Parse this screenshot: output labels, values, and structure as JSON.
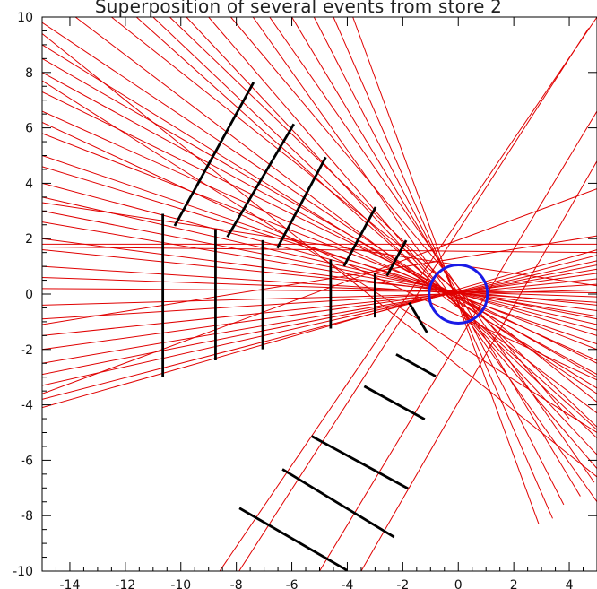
{
  "chart_data": {
    "type": "line",
    "title": "Superposition of several events from store 2",
    "xlabel": "",
    "ylabel": "",
    "xlim": [
      -15,
      5
    ],
    "ylim": [
      -10,
      10
    ],
    "grid": false,
    "x_ticks": [
      -14,
      -12,
      -10,
      -8,
      -6,
      -4,
      -2,
      0,
      2,
      4
    ],
    "y_ticks": [
      -10,
      -8,
      -6,
      -4,
      -2,
      0,
      2,
      4,
      6,
      8,
      10
    ],
    "colors": {
      "track": "#e00000",
      "detector": "#000000",
      "target_circle": "#1a1ae6",
      "frame": "#000000"
    },
    "target_circle": {
      "center": [
        0.0,
        0.0
      ],
      "radius": 1.05
    },
    "detector_segments": [
      [
        [
          -10.65,
          -2.95
        ],
        [
          -10.65,
          2.85
        ]
      ],
      [
        [
          -8.75,
          -2.35
        ],
        [
          -8.75,
          2.3
        ]
      ],
      [
        [
          -7.05,
          -1.95
        ],
        [
          -7.05,
          1.9
        ]
      ],
      [
        [
          -4.6,
          -1.2
        ],
        [
          -4.6,
          1.2
        ]
      ],
      [
        [
          -3.0,
          -0.8
        ],
        [
          -3.0,
          0.7
        ]
      ],
      [
        [
          -10.2,
          2.5
        ],
        [
          -7.4,
          7.6
        ]
      ],
      [
        [
          -8.3,
          2.1
        ],
        [
          -5.95,
          6.1
        ]
      ],
      [
        [
          -6.5,
          1.7
        ],
        [
          -4.8,
          4.9
        ]
      ],
      [
        [
          -4.1,
          1.05
        ],
        [
          -3.0,
          3.1
        ]
      ],
      [
        [
          -2.55,
          0.7
        ],
        [
          -1.9,
          1.9
        ]
      ],
      [
        [
          -1.75,
          -0.35
        ],
        [
          -1.15,
          -1.35
        ]
      ],
      [
        [
          -2.2,
          -2.2
        ],
        [
          -0.85,
          -2.95
        ]
      ],
      [
        [
          -3.35,
          -3.35
        ],
        [
          -1.25,
          -4.5
        ]
      ],
      [
        [
          -5.25,
          -5.15
        ],
        [
          -1.85,
          -7.0
        ]
      ],
      [
        [
          -6.3,
          -6.35
        ],
        [
          -2.35,
          -8.75
        ]
      ],
      [
        [
          -7.85,
          -7.75
        ],
        [
          -4.05,
          -9.95
        ]
      ]
    ],
    "tracks": [
      [
        [
          -15.0,
          9.8
        ],
        [
          5.0,
          -3.6
        ]
      ],
      [
        [
          -15.0,
          9.0
        ],
        [
          5.0,
          -3.4
        ]
      ],
      [
        [
          -15.0,
          8.5
        ],
        [
          5.0,
          -3.0
        ]
      ],
      [
        [
          -15.0,
          8.0
        ],
        [
          5.0,
          -2.9
        ]
      ],
      [
        [
          -15.0,
          7.3
        ],
        [
          5.0,
          -2.5
        ]
      ],
      [
        [
          -15.0,
          6.6
        ],
        [
          5.0,
          -2.4
        ]
      ],
      [
        [
          -15.0,
          5.8
        ],
        [
          5.0,
          -2.0
        ]
      ],
      [
        [
          -15.0,
          5.0
        ],
        [
          5.0,
          -1.8
        ]
      ],
      [
        [
          -15.0,
          4.6
        ],
        [
          5.0,
          -1.5
        ]
      ],
      [
        [
          -15.0,
          4.0
        ],
        [
          5.0,
          -1.3
        ]
      ],
      [
        [
          -15.0,
          3.5
        ],
        [
          5.0,
          -1.1
        ]
      ],
      [
        [
          -15.0,
          3.0
        ],
        [
          5.0,
          -0.9
        ]
      ],
      [
        [
          -15.0,
          2.6
        ],
        [
          5.0,
          -0.8
        ]
      ],
      [
        [
          -15.0,
          2.0
        ],
        [
          5.0,
          -0.6
        ]
      ],
      [
        [
          -15.0,
          1.6
        ],
        [
          5.0,
          -0.4
        ]
      ],
      [
        [
          -15.0,
          1.0
        ],
        [
          5.0,
          -0.3
        ]
      ],
      [
        [
          -15.0,
          0.6
        ],
        [
          5.0,
          -0.1
        ]
      ],
      [
        [
          -15.0,
          0.2
        ],
        [
          5.0,
          0.05
        ]
      ],
      [
        [
          -15.0,
          -0.4
        ],
        [
          5.0,
          0.15
        ]
      ],
      [
        [
          -15.0,
          -0.9
        ],
        [
          5.0,
          0.35
        ]
      ],
      [
        [
          -15.0,
          -1.5
        ],
        [
          5.0,
          0.55
        ]
      ],
      [
        [
          -15.0,
          -2.0
        ],
        [
          5.0,
          0.75
        ]
      ],
      [
        [
          -15.0,
          -2.5
        ],
        [
          5.0,
          0.9
        ]
      ],
      [
        [
          -15.0,
          -2.9
        ],
        [
          5.0,
          1.05
        ]
      ],
      [
        [
          -15.0,
          -3.3
        ],
        [
          5.0,
          1.2
        ]
      ],
      [
        [
          -15.0,
          -3.8
        ],
        [
          5.0,
          1.4
        ]
      ],
      [
        [
          -15.0,
          -4.1
        ],
        [
          5.0,
          1.6
        ]
      ],
      [
        [
          -15.0,
          1.8
        ],
        [
          5.0,
          1.8
        ]
      ],
      [
        [
          -15.0,
          1.7
        ],
        [
          5.0,
          1.5
        ]
      ],
      [
        [
          -13.8,
          10.0
        ],
        [
          5.0,
          -4.3
        ]
      ],
      [
        [
          -12.5,
          10.0
        ],
        [
          5.0,
          -3.9
        ]
      ],
      [
        [
          -11.6,
          10.0
        ],
        [
          5.0,
          -4.9
        ]
      ],
      [
        [
          -11.0,
          10.0
        ],
        [
          5.0,
          -5.2
        ]
      ],
      [
        [
          -10.4,
          10.0
        ],
        [
          5.0,
          -4.8
        ]
      ],
      [
        [
          -9.8,
          10.0
        ],
        [
          5.0,
          -5.8
        ]
      ],
      [
        [
          -9.0,
          10.0
        ],
        [
          5.0,
          -6.3
        ]
      ],
      [
        [
          -8.2,
          10.0
        ],
        [
          4.0,
          -4.5
        ]
      ],
      [
        [
          -7.4,
          10.0
        ],
        [
          5.0,
          -7.5
        ]
      ],
      [
        [
          -6.8,
          10.0
        ],
        [
          4.9,
          -6.8
        ]
      ],
      [
        [
          -6.0,
          10.0
        ],
        [
          4.4,
          -7.3
        ]
      ],
      [
        [
          -5.2,
          10.0
        ],
        [
          3.8,
          -7.6
        ]
      ],
      [
        [
          -4.5,
          10.0
        ],
        [
          3.4,
          -8.1
        ]
      ],
      [
        [
          -3.8,
          10.0
        ],
        [
          2.9,
          -8.3
        ]
      ],
      [
        [
          -15.0,
          9.4
        ],
        [
          5.0,
          -6.6
        ]
      ],
      [
        [
          -15.0,
          6.2
        ],
        [
          5.0,
          -3.1
        ]
      ],
      [
        [
          -15.0,
          7.7
        ],
        [
          5.0,
          -5.0
        ]
      ],
      [
        [
          -15.0,
          3.3
        ],
        [
          5.0,
          0.3
        ]
      ],
      [
        [
          -15.0,
          -1.1
        ],
        [
          5.0,
          2.1
        ]
      ],
      [
        [
          -7.9,
          -10.0
        ],
        [
          4.7,
          9.6
        ]
      ],
      [
        [
          -5.0,
          -10.0
        ],
        [
          5.0,
          6.6
        ]
      ],
      [
        [
          -8.6,
          -10.0
        ],
        [
          5.0,
          10.0
        ]
      ],
      [
        [
          -3.5,
          -10.0
        ],
        [
          5.0,
          4.8
        ]
      ],
      [
        [
          -15.0,
          -3.6
        ],
        [
          5.0,
          3.8
        ]
      ]
    ]
  }
}
